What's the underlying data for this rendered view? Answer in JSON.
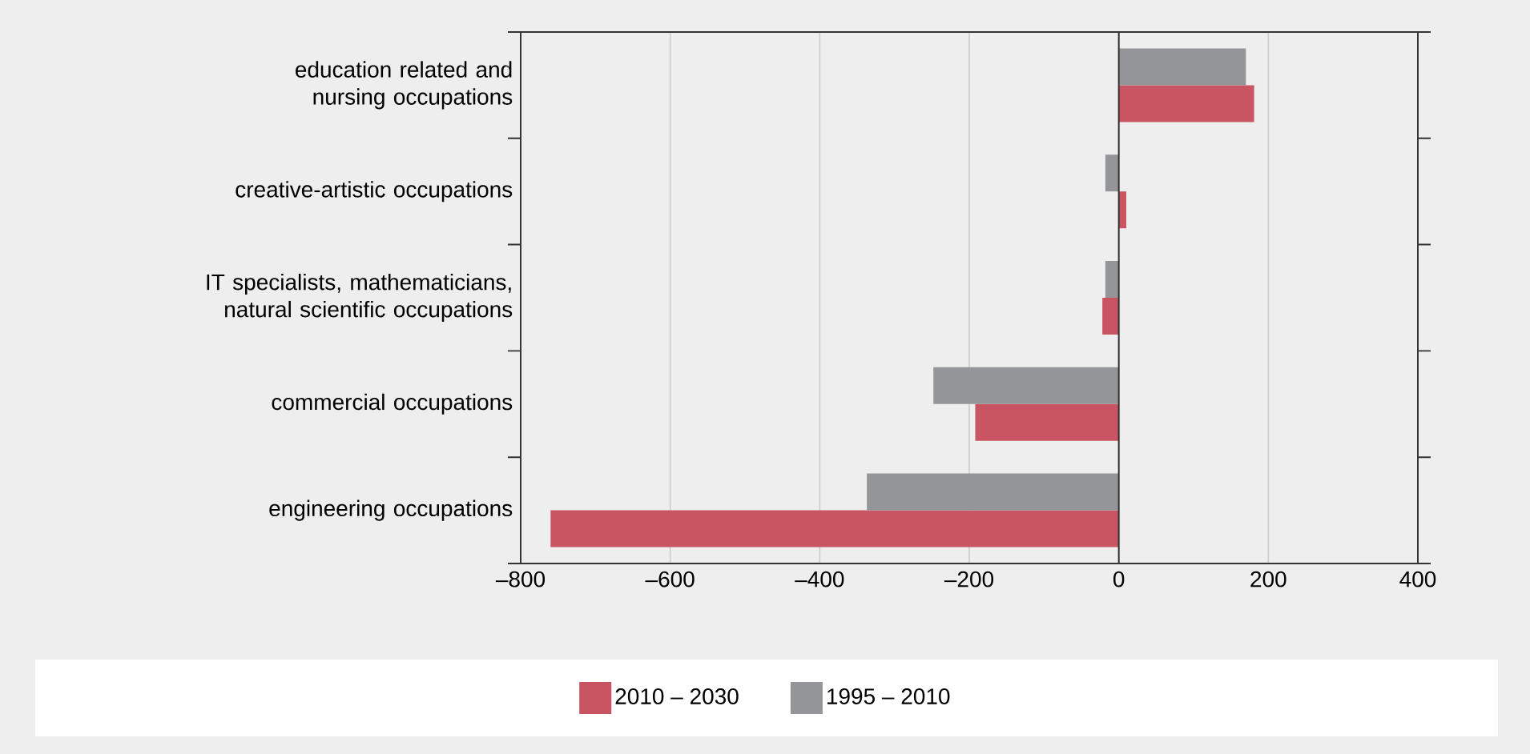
{
  "chart_data": {
    "type": "bar",
    "orientation": "horizontal",
    "categories": [
      "education related and nursing occupations",
      "creative-artistic occupations",
      "IT specialists, mathematicians, natural scientific occupations",
      "commercial occupations",
      "engineering occupations"
    ],
    "series": [
      {
        "name": "2010 – 2030",
        "color": "#c85561",
        "values": [
          181,
          10,
          -22,
          -192,
          -760
        ]
      },
      {
        "name": "1995 – 2010",
        "color": "#949599",
        "values": [
          170,
          -18,
          -18,
          -248,
          -337
        ]
      }
    ],
    "xlim": [
      -800,
      400
    ],
    "xticks": [
      {
        "value": -800,
        "label": "–800"
      },
      {
        "value": -600,
        "label": "–600"
      },
      {
        "value": -400,
        "label": "–400"
      },
      {
        "value": -200,
        "label": "–200"
      },
      0,
      200,
      400
    ],
    "grid": "x",
    "legend": "bottom"
  }
}
